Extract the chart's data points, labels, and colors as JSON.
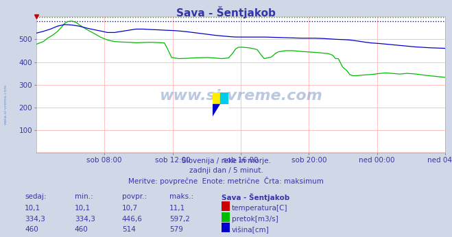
{
  "title": "Sava - Šentjakob",
  "bg_color": "#d0d8e8",
  "plot_bg": "#ffffff",
  "text_color": "#3535a5",
  "subtitle_lines": [
    "Slovenija / reke in morje.",
    "zadnji dan / 5 minut.",
    "Meritve: povprečne  Enote: metrične  Črta: maksimum"
  ],
  "xlabel_ticks": [
    "sob 08:00",
    "sob 12:00",
    "sob 16:00",
    "sob 20:00",
    "ned 00:00",
    "ned 04:00"
  ],
  "ylim": [
    0,
    600
  ],
  "yticks": [
    100,
    200,
    300,
    400,
    500
  ],
  "grid_color": "#ffaaaa",
  "max_green": 597.2,
  "max_blue": 579,
  "temp_color": "#cc0000",
  "flow_color": "#00bb00",
  "height_color": "#0000cc",
  "watermark_color": "#6688bb",
  "table_header": [
    "sedaj:",
    "min.:",
    "povpr.:",
    "maks.:",
    "Sava - Šentjakob"
  ],
  "table_rows": [
    [
      "10,1",
      "10,1",
      "10,7",
      "11,1",
      "temperatura[C]"
    ],
    [
      "334,3",
      "334,3",
      "446,6",
      "597,2",
      "pretok[m3/s]"
    ],
    [
      "460",
      "460",
      "514",
      "579",
      "višina[cm]"
    ]
  ],
  "legend_colors": [
    "#cc0000",
    "#00bb00",
    "#0000cc"
  ],
  "n_points": 288,
  "height_pts_x": [
    0,
    5,
    10,
    15,
    20,
    25,
    30,
    35,
    40,
    45,
    50,
    55,
    60,
    65,
    70,
    75,
    80,
    85,
    90,
    95,
    100,
    105,
    110,
    115,
    120,
    125,
    130,
    135,
    140,
    145,
    150,
    155,
    160,
    165,
    170,
    175,
    180,
    185,
    190,
    195,
    200,
    205,
    210,
    215,
    220,
    225,
    230,
    235,
    240,
    245,
    250,
    255,
    260,
    265,
    270,
    275,
    280,
    285,
    287
  ],
  "height_pts_y": [
    527,
    535,
    545,
    558,
    565,
    563,
    558,
    550,
    543,
    537,
    530,
    530,
    535,
    540,
    545,
    545,
    543,
    542,
    540,
    539,
    537,
    534,
    530,
    526,
    522,
    518,
    515,
    512,
    510,
    510,
    510,
    510,
    510,
    509,
    508,
    507,
    506,
    505,
    505,
    505,
    504,
    502,
    500,
    499,
    497,
    493,
    488,
    484,
    482,
    479,
    476,
    473,
    470,
    467,
    465,
    463,
    462,
    461,
    460
  ],
  "flow_pts_x": [
    0,
    5,
    8,
    12,
    15,
    18,
    20,
    22,
    25,
    28,
    30,
    35,
    40,
    45,
    50,
    55,
    60,
    65,
    70,
    75,
    80,
    85,
    90,
    92,
    95,
    100,
    105,
    110,
    115,
    120,
    125,
    128,
    130,
    132,
    135,
    138,
    140,
    142,
    145,
    148,
    150,
    155,
    158,
    160,
    162,
    165,
    168,
    170,
    175,
    180,
    185,
    190,
    195,
    200,
    205,
    208,
    210,
    212,
    215,
    218,
    220,
    222,
    225,
    228,
    230,
    235,
    240,
    245,
    250,
    255,
    260,
    265,
    270,
    275,
    280,
    285,
    287
  ],
  "flow_pts_y": [
    478,
    490,
    505,
    520,
    535,
    555,
    570,
    578,
    580,
    575,
    565,
    545,
    528,
    510,
    497,
    490,
    488,
    487,
    485,
    486,
    487,
    486,
    484,
    460,
    420,
    415,
    416,
    418,
    419,
    420,
    418,
    416,
    415,
    416,
    418,
    440,
    458,
    465,
    465,
    463,
    462,
    455,
    430,
    415,
    418,
    422,
    438,
    445,
    450,
    450,
    447,
    445,
    443,
    440,
    437,
    430,
    415,
    415,
    378,
    362,
    345,
    340,
    340,
    342,
    343,
    345,
    349,
    352,
    350,
    347,
    350,
    348,
    344,
    340,
    337,
    334,
    332
  ]
}
